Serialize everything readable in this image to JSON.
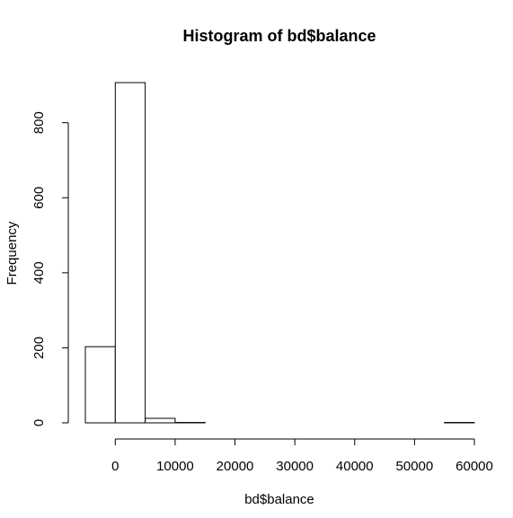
{
  "chart_data": {
    "type": "bar",
    "title": "Histogram of bd$balance",
    "xlabel": "bd$balance",
    "ylabel": "Frequency",
    "bins": [
      {
        "start": -5000,
        "end": 0,
        "count": 203
      },
      {
        "start": 0,
        "end": 5000,
        "count": 907
      },
      {
        "start": 5000,
        "end": 10000,
        "count": 12
      },
      {
        "start": 10000,
        "end": 15000,
        "count": 1
      },
      {
        "start": 15000,
        "end": 20000,
        "count": 0
      },
      {
        "start": 20000,
        "end": 25000,
        "count": 0
      },
      {
        "start": 25000,
        "end": 30000,
        "count": 0
      },
      {
        "start": 30000,
        "end": 35000,
        "count": 0
      },
      {
        "start": 35000,
        "end": 40000,
        "count": 0
      },
      {
        "start": 40000,
        "end": 45000,
        "count": 0
      },
      {
        "start": 45000,
        "end": 50000,
        "count": 0
      },
      {
        "start": 50000,
        "end": 55000,
        "count": 0
      },
      {
        "start": 55000,
        "end": 60000,
        "count": 1
      }
    ],
    "xticks": [
      "0",
      "10000",
      "20000",
      "30000",
      "40000",
      "50000",
      "60000"
    ],
    "xtick_values": [
      0,
      10000,
      20000,
      30000,
      40000,
      50000,
      60000
    ],
    "yticks": [
      "0",
      "200",
      "400",
      "600",
      "800"
    ],
    "ytick_values": [
      0,
      200,
      400,
      600,
      800
    ],
    "xlim": [
      -5000,
      60000
    ],
    "ylim": [
      0,
      907
    ],
    "grid": false,
    "bar_fill": "#ffffff",
    "bar_stroke": "#000000"
  }
}
